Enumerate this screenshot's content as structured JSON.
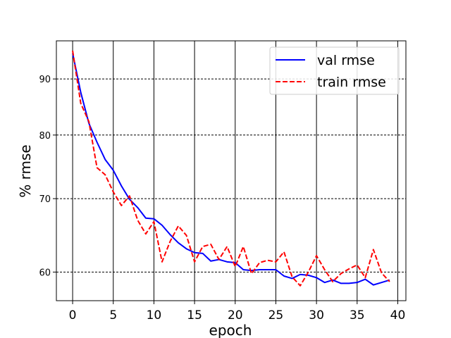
{
  "chart_data": {
    "type": "line",
    "title": "",
    "xlabel": "epoch",
    "ylabel": "% rmse",
    "xlim": [
      -2,
      41
    ],
    "ylim": [
      56.5,
      97.5
    ],
    "y_scale": "log",
    "xticks": [
      0,
      5,
      10,
      15,
      20,
      25,
      30,
      35,
      40
    ],
    "yticks": [
      60,
      70,
      80,
      90
    ],
    "grid": {
      "x": "solid vertical lines",
      "y": "dashed horizontal lines"
    },
    "legend_position": "upper-right",
    "x": [
      0,
      1,
      2,
      3,
      4,
      5,
      6,
      7,
      8,
      9,
      10,
      11,
      12,
      13,
      14,
      15,
      16,
      17,
      18,
      19,
      20,
      21,
      22,
      23,
      24,
      25,
      26,
      27,
      28,
      29,
      30,
      31,
      32,
      33,
      34,
      35,
      36,
      37,
      38,
      39
    ],
    "series": [
      {
        "name": "val rmse",
        "color": "#0000ff",
        "style": "solid",
        "values": [
          95.0,
          87.5,
          82.0,
          78.8,
          76.0,
          74.3,
          71.9,
          69.9,
          68.7,
          67.2,
          67.1,
          66.2,
          64.9,
          63.8,
          63.0,
          62.5,
          62.4,
          61.4,
          61.6,
          61.3,
          61.2,
          60.3,
          60.2,
          60.3,
          60.3,
          60.3,
          59.5,
          59.2,
          59.7,
          59.6,
          59.3,
          58.7,
          59.0,
          58.6,
          58.6,
          58.7,
          59.1,
          58.4,
          58.7,
          59.0
        ]
      },
      {
        "name": "train rmse",
        "color": "#ff0000",
        "style": "dashed",
        "values": [
          95.5,
          85.5,
          82.3,
          74.7,
          73.6,
          71.0,
          69.0,
          70.4,
          66.9,
          65.0,
          66.7,
          61.3,
          64.0,
          66.1,
          64.8,
          61.3,
          63.3,
          63.6,
          61.6,
          63.3,
          60.7,
          63.3,
          59.8,
          61.2,
          61.5,
          61.3,
          62.6,
          59.4,
          58.3,
          60.0,
          62.1,
          60.3,
          58.8,
          59.8,
          60.4,
          60.9,
          59.3,
          62.9,
          59.9,
          58.8
        ]
      }
    ]
  }
}
